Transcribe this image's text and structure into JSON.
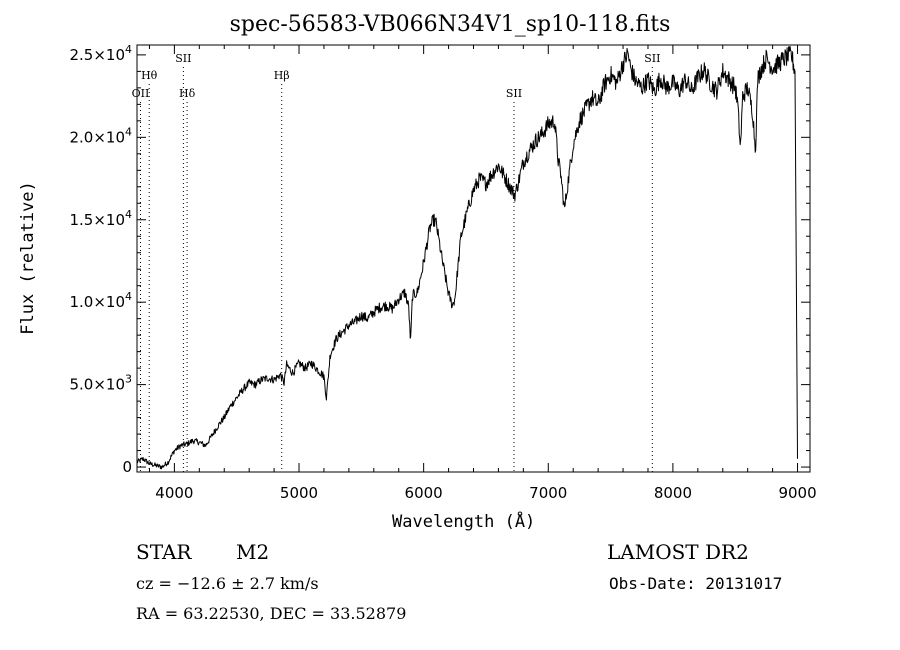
{
  "chart_data": {
    "type": "line",
    "title": "spec-56583-VB066N34V1_sp10-118.fits",
    "xlabel": "Wavelength (Å)",
    "ylabel": "Flux (relative)",
    "xlim": [
      3700,
      9100
    ],
    "ylim": [
      -300,
      25600
    ],
    "x_ticks": [
      4000,
      5000,
      6000,
      7000,
      8000,
      9000
    ],
    "x_tick_labels": [
      "4000",
      "5000",
      "6000",
      "7000",
      "8000",
      "9000"
    ],
    "y_ticks": [
      0,
      5000,
      10000,
      15000,
      20000,
      25000
    ],
    "y_tick_labels": [
      {
        "mant": "0",
        "exp": ""
      },
      {
        "mant": "5.0×10",
        "exp": "3"
      },
      {
        "mant": "1.0×10",
        "exp": "4"
      },
      {
        "mant": "1.5×10",
        "exp": "4"
      },
      {
        "mant": "2.0×10",
        "exp": "4"
      },
      {
        "mant": "2.5×10",
        "exp": "4"
      }
    ],
    "grid": false,
    "series": [
      {
        "x": [
          3700,
          3750,
          3800,
          3850,
          3900,
          3950,
          4000,
          4050,
          4100,
          4150,
          4200,
          4250,
          4300,
          4350,
          4400,
          4450,
          4500,
          4550,
          4600,
          4650,
          4700,
          4750,
          4800,
          4850,
          4880,
          4900,
          4950,
          5000,
          5050,
          5100,
          5150,
          5200,
          5220,
          5250,
          5300,
          5350,
          5400,
          5450,
          5500,
          5550,
          5600,
          5650,
          5700,
          5750,
          5800,
          5850,
          5880,
          5895,
          5910,
          5950,
          6000,
          6050,
          6080,
          6100,
          6150,
          6200,
          6230,
          6250,
          6300,
          6350,
          6400,
          6450,
          6500,
          6550,
          6600,
          6650,
          6700,
          6730,
          6750,
          6800,
          6850,
          6900,
          6950,
          7000,
          7050,
          7080,
          7100,
          7130,
          7150,
          7200,
          7250,
          7300,
          7350,
          7400,
          7450,
          7500,
          7550,
          7600,
          7640,
          7660,
          7700,
          7750,
          7800,
          7850,
          7900,
          7950,
          8000,
          8050,
          8100,
          8150,
          8200,
          8250,
          8300,
          8350,
          8400,
          8450,
          8500,
          8520,
          8542,
          8560,
          8600,
          8640,
          8662,
          8680,
          8700,
          8750,
          8800,
          8850,
          8900,
          8950,
          8980,
          9000
        ],
        "y": [
          300,
          500,
          200,
          100,
          0,
          300,
          1000,
          1300,
          1400,
          1600,
          1500,
          1300,
          1900,
          2500,
          3000,
          3700,
          4200,
          4700,
          5100,
          5000,
          5300,
          5400,
          5300,
          5600,
          5100,
          6200,
          5700,
          6300,
          6000,
          6300,
          5900,
          5500,
          4200,
          6800,
          7800,
          8200,
          8600,
          8800,
          9200,
          9000,
          9400,
          9700,
          9800,
          9600,
          10200,
          10600,
          9700,
          7500,
          10400,
          10600,
          12400,
          14500,
          15000,
          14800,
          12500,
          10500,
          9800,
          10200,
          14000,
          15500,
          16800,
          17500,
          17200,
          17800,
          18300,
          17600,
          16900,
          16500,
          17000,
          18500,
          19200,
          19800,
          20200,
          20800,
          21000,
          18600,
          17800,
          15600,
          16800,
          19600,
          21000,
          21700,
          22400,
          22000,
          23200,
          23800,
          23300,
          24500,
          25100,
          24200,
          23400,
          23000,
          23500,
          22800,
          23600,
          23000,
          23300,
          22800,
          23500,
          22800,
          23600,
          24100,
          23300,
          22800,
          24000,
          23500,
          23000,
          22000,
          19300,
          22500,
          23000,
          21500,
          19200,
          23500,
          24000,
          24800,
          24200,
          24500,
          24800,
          25000,
          24000,
          500
        ]
      }
    ],
    "annotations": [
      {
        "label": "OII",
        "x": 3728,
        "line": true,
        "row": 3
      },
      {
        "label": "Hθ",
        "x": 3798,
        "line": true,
        "row": 2
      },
      {
        "label": "SII",
        "x": 4072,
        "line": true,
        "row": 1
      },
      {
        "label": "Hδ",
        "x": 4102,
        "line": true,
        "row": 3
      },
      {
        "label": "Hβ",
        "x": 4861,
        "line": true,
        "row": 2
      },
      {
        "label": "SII",
        "x": 6725,
        "line": true,
        "row": 3
      },
      {
        "label": "SII",
        "x": 7835,
        "line": true,
        "row": 1
      }
    ]
  },
  "info": {
    "class": "STAR",
    "subclass": "M2",
    "survey": "LAMOST DR2",
    "cz": "cz = −12.6 ± 2.7 km/s",
    "obs_date": "Obs-Date: 20131017",
    "radec": "RA =  63.22530, DEC =  33.52879"
  }
}
